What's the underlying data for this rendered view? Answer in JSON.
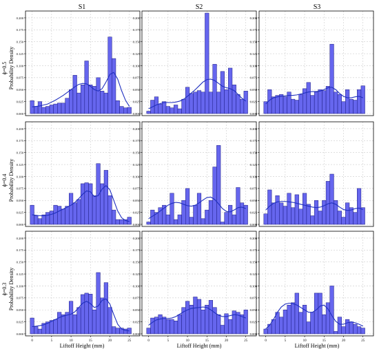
{
  "figure": {
    "column_titles": [
      "S1",
      "S2",
      "S3"
    ],
    "row_labels": [
      "ϕ=0.5",
      "ϕ=0.4",
      "ϕ=0.3"
    ],
    "ylabel": "Probability Density",
    "xlabel": "Liftoff Height (mm)",
    "xticks": [
      "0",
      "5",
      "10",
      "15",
      "20",
      "25"
    ],
    "yticks": [
      "0.000",
      "0.025",
      "0.050",
      "0.075",
      "0.100",
      "0.125",
      "0.150",
      "0.175",
      "0.200"
    ]
  },
  "colors": {
    "bar_fill": "#6666ee",
    "bar_stroke": "#1a1a80",
    "kde_line": "#1f2fbf",
    "grid": "#cccccc",
    "frame": "#000000"
  },
  "chart_data": [
    {
      "type": "bar",
      "panel": "S1 ϕ=0.5",
      "x": [
        0,
        1,
        2,
        3,
        4,
        5,
        6,
        7,
        8,
        9,
        10,
        11,
        12,
        13,
        14,
        15,
        16,
        17,
        18,
        19,
        20,
        21,
        22,
        23,
        24,
        25
      ],
      "values": [
        0.027,
        0.015,
        0.025,
        0.013,
        0.015,
        0.018,
        0.02,
        0.022,
        0.022,
        0.032,
        0.05,
        0.08,
        0.043,
        0.06,
        0.11,
        0.06,
        0.057,
        0.075,
        0.047,
        0.043,
        0.16,
        0.115,
        0.027,
        0.015,
        0.012,
        0.013
      ],
      "kde": [
        0.014,
        0.015,
        0.016,
        0.018,
        0.02,
        0.024,
        0.028,
        0.033,
        0.038,
        0.044,
        0.05,
        0.056,
        0.061,
        0.063,
        0.062,
        0.057,
        0.05,
        0.047,
        0.052,
        0.066,
        0.082,
        0.086,
        0.072,
        0.048,
        0.028,
        0.015
      ],
      "xlim": [
        -1,
        27
      ],
      "ylim": [
        0,
        0.21
      ]
    },
    {
      "type": "bar",
      "panel": "S2 ϕ=0.5",
      "x": [
        0,
        1,
        2,
        3,
        4,
        5,
        6,
        7,
        8,
        9,
        10,
        11,
        12,
        13,
        14,
        15,
        16,
        17,
        18,
        19,
        20,
        21,
        22,
        23,
        24,
        25
      ],
      "values": [
        0.005,
        0.028,
        0.035,
        0.02,
        0.025,
        0.015,
        0.012,
        0.018,
        0.01,
        0.03,
        0.055,
        0.042,
        0.045,
        0.048,
        0.045,
        0.21,
        0.045,
        0.103,
        0.045,
        0.088,
        0.05,
        0.095,
        0.06,
        0.04,
        0.03,
        0.047
      ],
      "kde": [
        0.01,
        0.014,
        0.018,
        0.021,
        0.023,
        0.023,
        0.023,
        0.024,
        0.026,
        0.03,
        0.036,
        0.043,
        0.05,
        0.058,
        0.066,
        0.071,
        0.072,
        0.069,
        0.063,
        0.057,
        0.054,
        0.052,
        0.048,
        0.04,
        0.032,
        0.026
      ],
      "xlim": [
        -1,
        27
      ],
      "ylim": [
        0,
        0.21
      ]
    },
    {
      "type": "bar",
      "panel": "S3 ϕ=0.5",
      "x": [
        0,
        1,
        2,
        3,
        4,
        5,
        6,
        7,
        8,
        9,
        10,
        11,
        12,
        13,
        14,
        15,
        16,
        17,
        18,
        19,
        20,
        21,
        22,
        23,
        24,
        25
      ],
      "values": [
        0.025,
        0.05,
        0.035,
        0.038,
        0.04,
        0.035,
        0.045,
        0.03,
        0.028,
        0.04,
        0.052,
        0.065,
        0.038,
        0.045,
        0.05,
        0.048,
        0.057,
        0.145,
        0.045,
        0.04,
        0.025,
        0.05,
        0.03,
        0.028,
        0.05,
        0.058
      ],
      "kde": [
        0.02,
        0.028,
        0.033,
        0.035,
        0.036,
        0.037,
        0.038,
        0.038,
        0.039,
        0.041,
        0.043,
        0.045,
        0.046,
        0.046,
        0.047,
        0.05,
        0.054,
        0.055,
        0.05,
        0.042,
        0.036,
        0.033,
        0.033,
        0.035,
        0.036,
        0.033
      ],
      "xlim": [
        -1,
        27
      ],
      "ylim": [
        0,
        0.21
      ]
    },
    {
      "type": "bar",
      "panel": "S1 ϕ=0.4",
      "x": [
        0,
        1,
        2,
        3,
        4,
        5,
        6,
        7,
        8,
        9,
        10,
        11,
        12,
        13,
        14,
        15,
        16,
        17,
        18,
        19,
        20,
        21,
        22,
        23,
        24,
        25
      ],
      "values": [
        0.04,
        0.018,
        0.012,
        0.02,
        0.025,
        0.028,
        0.04,
        0.038,
        0.032,
        0.038,
        0.065,
        0.045,
        0.052,
        0.085,
        0.087,
        0.085,
        0.06,
        0.127,
        0.085,
        0.113,
        0.06,
        0.03,
        0.01,
        0.01,
        0.01,
        0.015
      ],
      "kde": [
        0.02,
        0.019,
        0.018,
        0.018,
        0.019,
        0.021,
        0.024,
        0.028,
        0.032,
        0.036,
        0.04,
        0.046,
        0.054,
        0.063,
        0.07,
        0.068,
        0.058,
        0.06,
        0.074,
        0.081,
        0.072,
        0.05,
        0.028,
        0.014,
        0.008,
        0.006
      ],
      "xlim": [
        -1,
        27
      ],
      "ylim": [
        0,
        0.21
      ]
    },
    {
      "type": "bar",
      "panel": "S2 ϕ=0.4",
      "x": [
        0,
        1,
        2,
        3,
        4,
        5,
        6,
        7,
        8,
        9,
        10,
        11,
        12,
        13,
        14,
        15,
        16,
        17,
        18,
        19,
        20,
        21,
        22,
        23,
        24,
        25
      ],
      "values": [
        0.005,
        0.03,
        0.025,
        0.035,
        0.04,
        0.02,
        0.065,
        0.01,
        0.02,
        0.05,
        0.075,
        0.015,
        0.04,
        0.065,
        0.012,
        0.03,
        0.05,
        0.12,
        0.165,
        0.005,
        0.025,
        0.04,
        0.02,
        0.077,
        0.045,
        0.04
      ],
      "kde": [
        0.012,
        0.017,
        0.022,
        0.028,
        0.034,
        0.04,
        0.044,
        0.046,
        0.045,
        0.042,
        0.039,
        0.038,
        0.04,
        0.045,
        0.051,
        0.056,
        0.057,
        0.052,
        0.043,
        0.033,
        0.027,
        0.026,
        0.03,
        0.035,
        0.036,
        0.033
      ],
      "xlim": [
        -1,
        27
      ],
      "ylim": [
        0,
        0.21
      ]
    },
    {
      "type": "bar",
      "panel": "S3 ϕ=0.4",
      "x": [
        0,
        1,
        2,
        3,
        4,
        5,
        6,
        7,
        8,
        9,
        10,
        11,
        12,
        13,
        14,
        15,
        16,
        17,
        18,
        19,
        20,
        21,
        22,
        23,
        24,
        25
      ],
      "values": [
        0.022,
        0.072,
        0.045,
        0.06,
        0.045,
        0.038,
        0.065,
        0.035,
        0.062,
        0.032,
        0.065,
        0.042,
        0.018,
        0.05,
        0.028,
        0.05,
        0.09,
        0.105,
        0.05,
        0.028,
        0.015,
        0.045,
        0.035,
        0.025,
        0.075,
        0.035
      ],
      "kde": [
        0.03,
        0.038,
        0.044,
        0.047,
        0.048,
        0.048,
        0.047,
        0.046,
        0.044,
        0.042,
        0.04,
        0.038,
        0.036,
        0.035,
        0.036,
        0.039,
        0.043,
        0.045,
        0.042,
        0.036,
        0.031,
        0.029,
        0.03,
        0.033,
        0.034,
        0.031
      ],
      "xlim": [
        -1,
        27
      ],
      "ylim": [
        0,
        0.21
      ]
    },
    {
      "type": "bar",
      "panel": "S1 ϕ=0.3",
      "x": [
        0,
        1,
        2,
        3,
        4,
        5,
        6,
        7,
        8,
        9,
        10,
        11,
        12,
        13,
        14,
        15,
        16,
        17,
        18,
        19,
        20,
        21,
        22,
        23,
        24,
        25
      ],
      "values": [
        0.033,
        0.015,
        0.01,
        0.022,
        0.025,
        0.028,
        0.03,
        0.045,
        0.04,
        0.045,
        0.068,
        0.04,
        0.055,
        0.082,
        0.085,
        0.083,
        0.05,
        0.128,
        0.075,
        0.107,
        0.055,
        0.015,
        0.012,
        0.012,
        0.01,
        0.012
      ],
      "kde": [
        0.015,
        0.016,
        0.017,
        0.019,
        0.022,
        0.026,
        0.03,
        0.034,
        0.037,
        0.039,
        0.041,
        0.046,
        0.055,
        0.064,
        0.068,
        0.063,
        0.055,
        0.058,
        0.07,
        0.073,
        0.062,
        0.04,
        0.02,
        0.01,
        0.007,
        0.006
      ],
      "xlim": [
        -1,
        27
      ],
      "ylim": [
        0,
        0.21
      ]
    },
    {
      "type": "bar",
      "panel": "S2 ϕ=0.3",
      "x": [
        0,
        1,
        2,
        3,
        4,
        5,
        6,
        7,
        8,
        9,
        10,
        11,
        12,
        13,
        14,
        15,
        16,
        17,
        18,
        19,
        20,
        21,
        22,
        23,
        24,
        25
      ],
      "values": [
        0.012,
        0.033,
        0.035,
        0.04,
        0.035,
        0.03,
        0.03,
        0.027,
        0.04,
        0.055,
        0.068,
        0.06,
        0.077,
        0.072,
        0.05,
        0.06,
        0.07,
        0.055,
        0.04,
        0.018,
        0.042,
        0.03,
        0.048,
        0.045,
        0.04,
        0.05
      ],
      "kde": [
        0.018,
        0.024,
        0.029,
        0.031,
        0.032,
        0.032,
        0.033,
        0.036,
        0.041,
        0.046,
        0.05,
        0.053,
        0.054,
        0.055,
        0.056,
        0.055,
        0.05,
        0.044,
        0.039,
        0.036,
        0.036,
        0.038,
        0.04,
        0.039,
        0.036,
        0.033
      ],
      "xlim": [
        -1,
        27
      ],
      "ylim": [
        0,
        0.21
      ]
    },
    {
      "type": "bar",
      "panel": "S3 ϕ=0.3",
      "x": [
        0,
        1,
        2,
        3,
        4,
        5,
        6,
        7,
        8,
        9,
        10,
        11,
        12,
        13,
        14,
        15,
        16,
        17,
        18,
        19,
        20,
        21,
        22,
        23,
        24,
        25
      ],
      "values": [
        0.01,
        0.02,
        0.03,
        0.045,
        0.035,
        0.05,
        0.06,
        0.065,
        0.085,
        0.045,
        0.06,
        0.025,
        0.045,
        0.085,
        0.085,
        0.04,
        0.065,
        0.1,
        0.005,
        0.035,
        0.015,
        0.03,
        0.025,
        0.02,
        0.015,
        0.012
      ],
      "kde": [
        0.01,
        0.018,
        0.03,
        0.045,
        0.056,
        0.062,
        0.064,
        0.063,
        0.06,
        0.055,
        0.05,
        0.045,
        0.045,
        0.05,
        0.058,
        0.06,
        0.052,
        0.038,
        0.026,
        0.02,
        0.02,
        0.023,
        0.025,
        0.023,
        0.02,
        0.016
      ],
      "xlim": [
        -1,
        27
      ],
      "ylim": [
        0,
        0.21
      ]
    }
  ]
}
